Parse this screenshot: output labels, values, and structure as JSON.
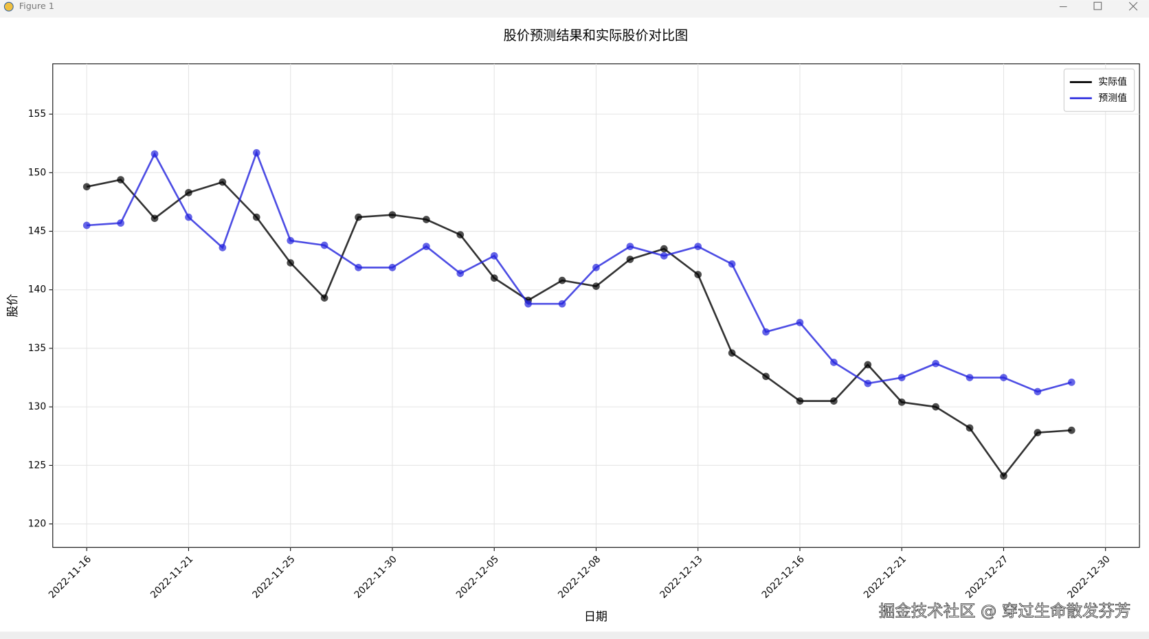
{
  "window": {
    "title": "Figure 1"
  },
  "watermark": "掘金技术社区 @ 穿过生命散发芬芳",
  "chart_data": {
    "type": "line",
    "title": "股价预测结果和实际股价对比图",
    "x_label": "日期",
    "y_label": "股价",
    "categories": [
      "2022-11-16",
      null,
      null,
      "2022-11-21",
      null,
      null,
      "2022-11-25",
      null,
      null,
      "2022-11-30",
      null,
      null,
      "2022-12-05",
      null,
      null,
      "2022-12-08",
      null,
      null,
      "2022-12-13",
      null,
      null,
      "2022-12-16",
      null,
      null,
      "2022-12-21",
      null,
      null,
      "2022-12-27",
      null,
      null,
      "2022-12-30"
    ],
    "series": [
      {
        "name": "实际值",
        "color": "#000000",
        "values": [
          148.8,
          149.4,
          146.1,
          148.3,
          149.2,
          146.2,
          142.3,
          139.3,
          146.2,
          146.4,
          146.0,
          144.7,
          141.0,
          139.1,
          140.8,
          140.3,
          142.6,
          143.5,
          141.3,
          134.6,
          132.6,
          130.5,
          130.5,
          133.6,
          130.4,
          130.0,
          128.2,
          124.1,
          127.8,
          128.0,
          null
        ]
      },
      {
        "name": "预测值",
        "color": "#2222dd",
        "values": [
          145.5,
          145.7,
          151.6,
          146.2,
          143.6,
          151.7,
          144.2,
          143.8,
          141.9,
          141.9,
          143.7,
          141.4,
          142.9,
          138.8,
          138.8,
          141.9,
          143.7,
          142.9,
          143.7,
          142.2,
          136.4,
          137.2,
          133.8,
          132.0,
          132.5,
          133.7,
          132.5,
          132.5,
          131.3,
          132.1,
          null
        ]
      }
    ],
    "ylim": [
      118,
      159.3
    ],
    "yticks": [
      120,
      125,
      130,
      135,
      140,
      145,
      150,
      155
    ],
    "grid": true,
    "legend": "upper right"
  }
}
